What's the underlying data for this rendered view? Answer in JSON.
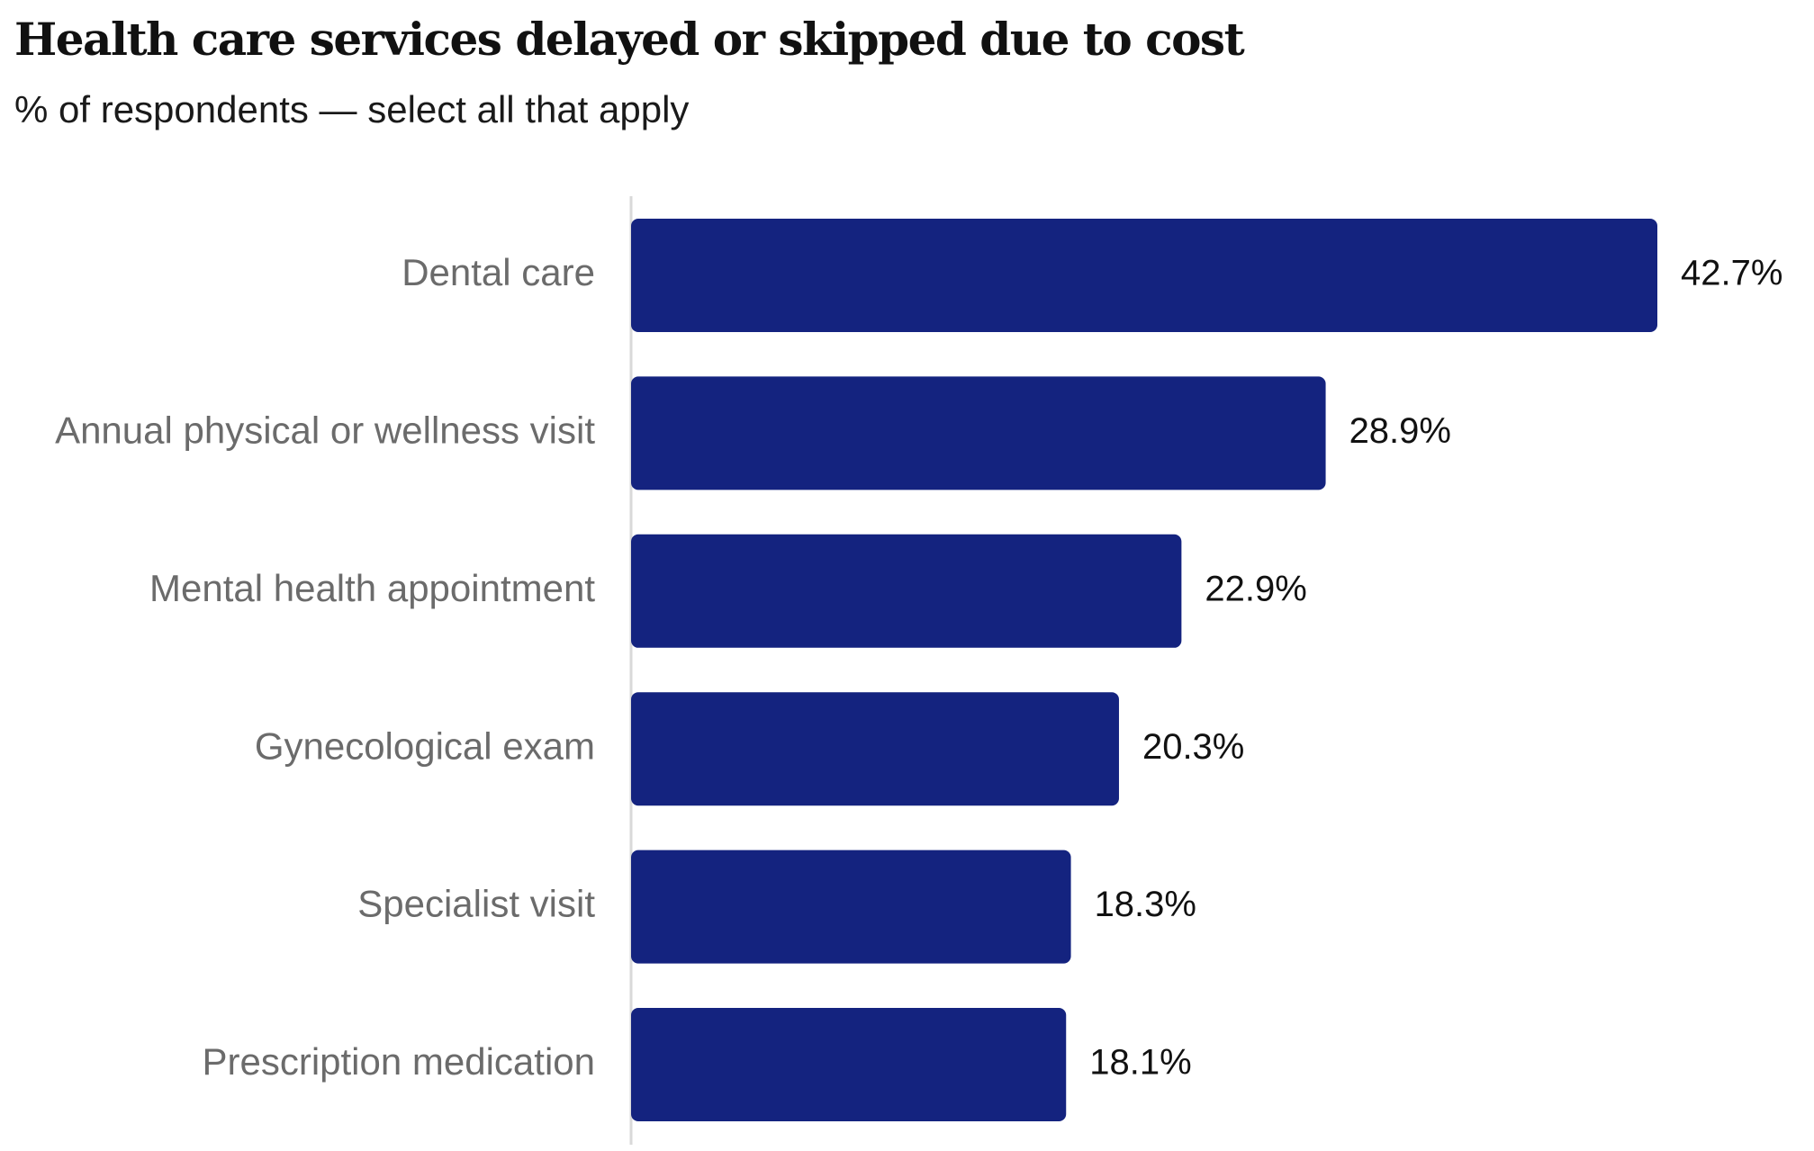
{
  "chart_data": {
    "type": "bar",
    "orientation": "horizontal",
    "title": "Health care services delayed or skipped due to cost",
    "subtitle": "% of respondents — select all that apply",
    "categories": [
      "Dental care",
      "Annual physical or wellness visit",
      "Mental health appointment",
      "Gynecological exam",
      "Specialist visit",
      "Prescription medication"
    ],
    "values": [
      42.7,
      28.9,
      22.9,
      20.3,
      18.3,
      18.1
    ],
    "data_labels": [
      "42.7%",
      "28.9%",
      "22.9%",
      "20.3%",
      "18.3%",
      "18.1%"
    ],
    "xlim": [
      0,
      42.7
    ],
    "grid": false,
    "legend": "none",
    "bar_color": "#14237f",
    "axis_color": "#d9d9d9"
  }
}
